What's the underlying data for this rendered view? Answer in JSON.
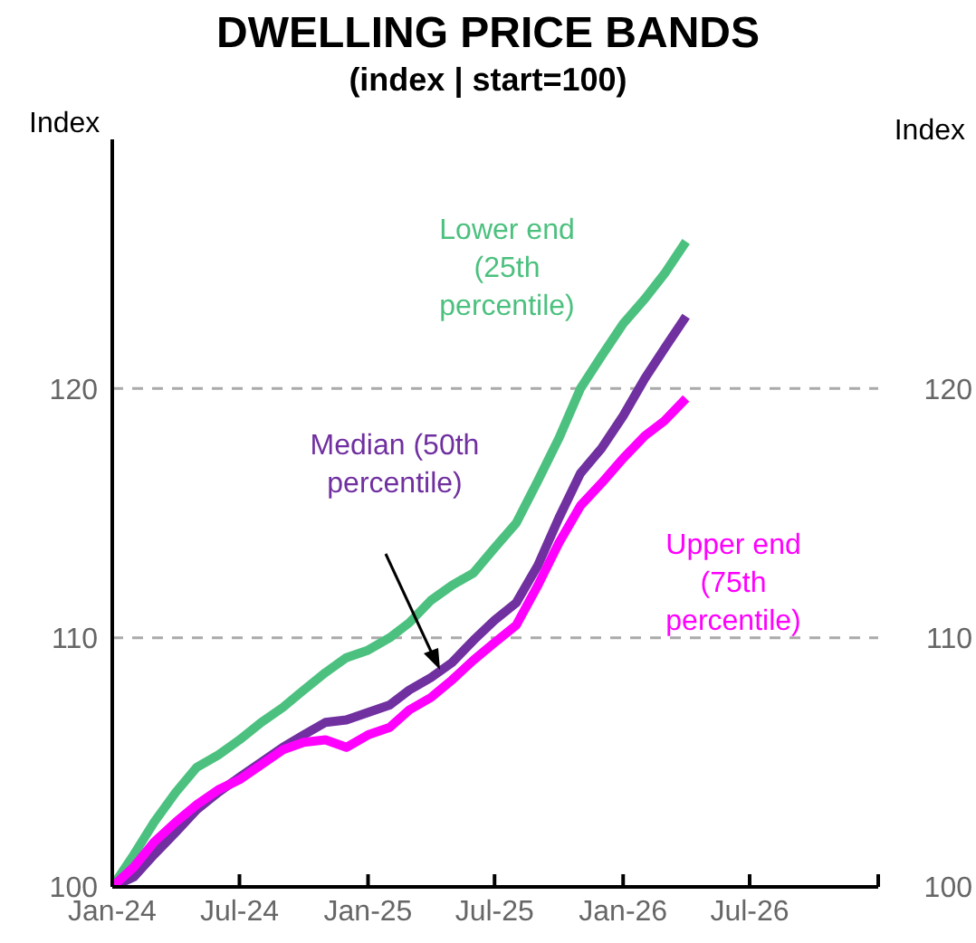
{
  "chart_data": {
    "type": "line",
    "title": "DWELLING PRICE BANDS",
    "subtitle": "(index | start=100)",
    "ylabel": "Index",
    "y2label": "Index",
    "x": [
      "2024-01",
      "2024-02",
      "2024-03",
      "2024-04",
      "2024-05",
      "2024-06",
      "2024-07",
      "2024-08",
      "2024-09",
      "2024-10",
      "2024-11",
      "2024-12",
      "2025-01",
      "2025-02",
      "2025-03",
      "2025-04",
      "2025-05",
      "2025-06",
      "2025-07",
      "2025-08",
      "2025-09",
      "2025-10",
      "2025-11",
      "2025-12",
      "2026-01",
      "2026-02",
      "2026-03",
      "2026-04"
    ],
    "series": [
      {
        "name": "Lower end (25th percentile)",
        "color": "#4cc17f",
        "values": [
          100,
          101.3,
          102.6,
          103.8,
          104.8,
          105.3,
          105.9,
          106.6,
          107.2,
          107.9,
          108.6,
          109.2,
          109.5,
          110.0,
          110.6,
          111.5,
          112.1,
          112.6,
          113.6,
          114.6,
          116.3,
          118.0,
          120.0,
          121.3,
          122.6,
          123.6,
          124.6,
          125.9
        ]
      },
      {
        "name": "Median (50th percentile)",
        "color": "#7030a0",
        "values": [
          100,
          100.4,
          101.3,
          102.2,
          103.1,
          103.8,
          104.4,
          105.0,
          105.6,
          106.1,
          106.6,
          106.7,
          107.0,
          107.3,
          107.9,
          108.4,
          109.0,
          109.9,
          110.7,
          111.4,
          112.9,
          114.8,
          116.6,
          117.6,
          118.9,
          120.4,
          121.6,
          122.9
        ]
      },
      {
        "name": "Upper end (75th percentile)",
        "color": "#ff00ff",
        "values": [
          100,
          100.8,
          101.8,
          102.6,
          103.3,
          103.9,
          104.3,
          104.9,
          105.5,
          105.8,
          105.9,
          105.6,
          106.1,
          106.4,
          107.1,
          107.6,
          108.3,
          109.1,
          109.8,
          110.5,
          112.1,
          113.8,
          115.3,
          116.2,
          117.2,
          118.1,
          118.7,
          119.6
        ]
      }
    ],
    "xlim": [
      "2024-01",
      "2027-01"
    ],
    "xticks": [
      {
        "value": "2024-01",
        "label": "Jan-24"
      },
      {
        "value": "2024-07",
        "label": "Jul-24"
      },
      {
        "value": "2025-01",
        "label": "Jan-25"
      },
      {
        "value": "2025-07",
        "label": "Jul-25"
      },
      {
        "value": "2026-01",
        "label": "Jan-26"
      },
      {
        "value": "2026-07",
        "label": "Jul-26"
      },
      {
        "value": "2027-01",
        "label": null
      }
    ],
    "ylim": [
      100,
      130
    ],
    "yticks": [
      100,
      110,
      120
    ],
    "y2lim": [
      100,
      130
    ],
    "y2ticks": [
      100,
      110,
      120
    ],
    "grid": "y",
    "legend": false,
    "marker": "none",
    "line_style": "solid"
  }
}
